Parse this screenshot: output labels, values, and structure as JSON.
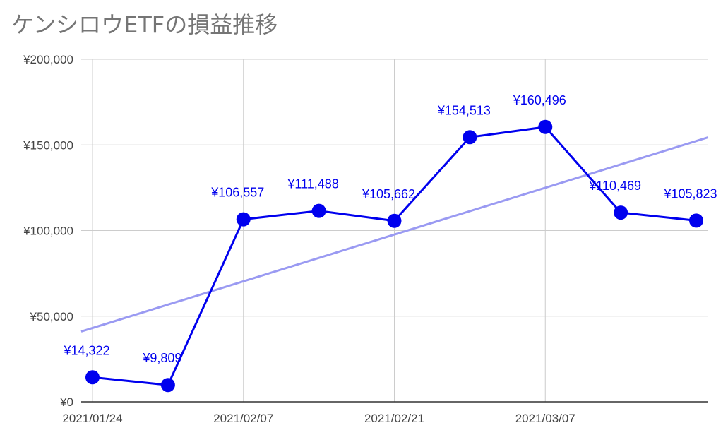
{
  "chart_data": {
    "type": "line",
    "title": "ケンシロウETFの損益推移",
    "xlabel": "",
    "ylabel": "",
    "x": [
      "2021/01/24",
      "2021/01/31",
      "2021/02/07",
      "2021/02/14",
      "2021/02/21",
      "2021/02/28",
      "2021/03/07",
      "2021/03/14",
      "2021/03/21"
    ],
    "x_tick_labels": [
      "2021/01/24",
      "2021/02/07",
      "2021/02/21",
      "2021/03/07"
    ],
    "y_tick_labels": [
      "¥0",
      "¥50,000",
      "¥100,000",
      "¥150,000",
      "¥200,000"
    ],
    "ylim": [
      0,
      200000
    ],
    "grid": true,
    "legend": "none",
    "series": [
      {
        "values": [
          14322,
          9809,
          106557,
          111488,
          105662,
          154513,
          160496,
          110469,
          105823
        ],
        "labels": [
          "¥14,322",
          "¥9,809",
          "¥106,557",
          "¥111,488",
          "¥105,662",
          "¥154,513",
          "¥160,496",
          "¥110,469",
          "¥105,823"
        ],
        "color": "#0000ee"
      }
    ],
    "trendline": {
      "type": "linear",
      "color": "#9a9af2"
    }
  }
}
